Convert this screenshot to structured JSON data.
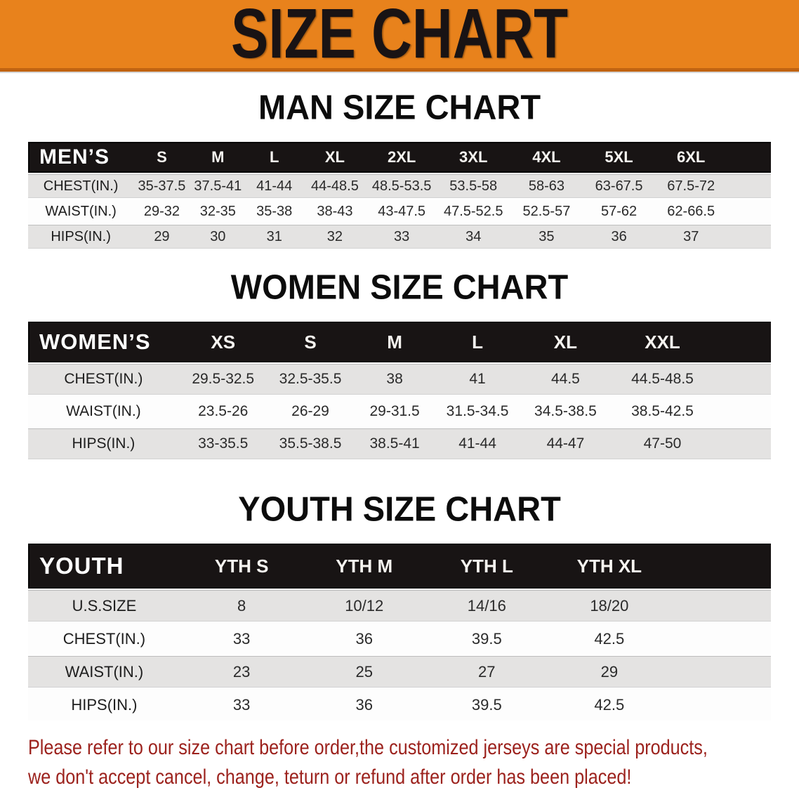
{
  "banner": {
    "title": "SIZE CHART"
  },
  "colors": {
    "banner_orange": "#e8821c",
    "banner_orange_dark": "#c06311",
    "header_black": "#181414",
    "row_gray": "#e4e3e2",
    "row_white": "#fdfdfd",
    "note_red": "#9c221d"
  },
  "sections": {
    "men": {
      "heading": "MAN SIZE CHART",
      "label": "MEN’S",
      "sizes": [
        "S",
        "M",
        "L",
        "XL",
        "2XL",
        "3XL",
        "4XL",
        "5XL",
        "6XL"
      ],
      "rows": [
        {
          "label": "CHEST(IN.)",
          "values": [
            "35-37.5",
            "37.5-41",
            "41-44",
            "44-48.5",
            "48.5-53.5",
            "53.5-58",
            "58-63",
            "63-67.5",
            "67.5-72"
          ]
        },
        {
          "label": "WAIST(IN.)",
          "values": [
            "29-32",
            "32-35",
            "35-38",
            "38-43",
            "43-47.5",
            "47.5-52.5",
            "52.5-57",
            "57-62",
            "62-66.5"
          ]
        },
        {
          "label": "HIPS(IN.)",
          "values": [
            "29",
            "30",
            "31",
            "32",
            "33",
            "34",
            "35",
            "36",
            "37"
          ]
        }
      ]
    },
    "women": {
      "heading": "WOMEN SIZE CHART",
      "label": "WOMEN’S",
      "sizes": [
        "XS",
        "S",
        "M",
        "L",
        "XL",
        "XXL"
      ],
      "rows": [
        {
          "label": "CHEST(IN.)",
          "values": [
            "29.5-32.5",
            "32.5-35.5",
            "38",
            "41",
            "44.5",
            "44.5-48.5"
          ]
        },
        {
          "label": "WAIST(IN.)",
          "values": [
            "23.5-26",
            "26-29",
            "29-31.5",
            "31.5-34.5",
            "34.5-38.5",
            "38.5-42.5"
          ]
        },
        {
          "label": "HIPS(IN.)",
          "values": [
            "33-35.5",
            "35.5-38.5",
            "38.5-41",
            "41-44",
            "44-47",
            "47-50"
          ]
        }
      ]
    },
    "youth": {
      "heading": "YOUTH SIZE CHART",
      "label": "YOUTH",
      "sizes": [
        "YTH S",
        "YTH M",
        "YTH L",
        "YTH XL"
      ],
      "rows": [
        {
          "label": "U.S.SIZE",
          "values": [
            "8",
            "10/12",
            "14/16",
            "18/20"
          ]
        },
        {
          "label": "CHEST(IN.)",
          "values": [
            "33",
            "36",
            "39.5",
            "42.5"
          ]
        },
        {
          "label": "WAIST(IN.)",
          "values": [
            "23",
            "25",
            "27",
            "29"
          ]
        },
        {
          "label": "HIPS(IN.)",
          "values": [
            "33",
            "36",
            "39.5",
            "42.5"
          ]
        }
      ]
    }
  },
  "footer": {
    "line1": "Please refer to our size chart before order,the customized jerseys are special products,",
    "line2": "we don't accept cancel, change, teturn or refund after order has been placed!"
  }
}
